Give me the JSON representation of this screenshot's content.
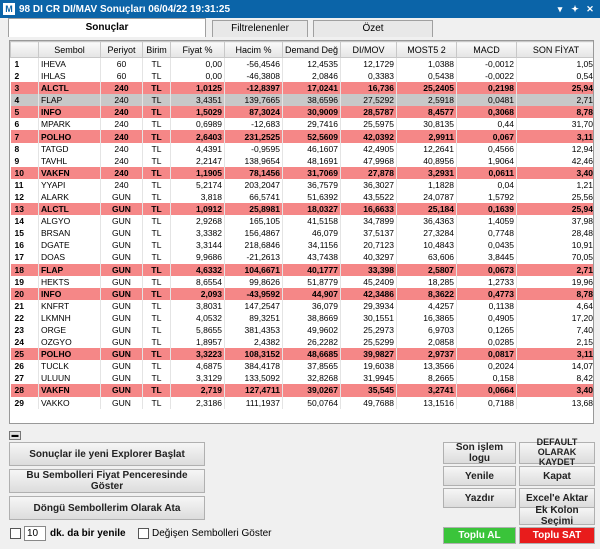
{
  "window": {
    "title": "98 DI CR DI/MAV Sonuçları  06/04/22 19:31:25",
    "icon_text": "M"
  },
  "tabs": [
    {
      "label": "Sonuçlar"
    },
    {
      "label": "Filtrelenenler"
    },
    {
      "label": "Özet"
    }
  ],
  "columns": [
    "",
    "Sembol",
    "Periyot",
    "Birim",
    "Fiyat %",
    "Hacim %",
    "Demand Değ",
    "DI/MOV",
    "MOST5 2",
    "MACD",
    "SON FİYAT"
  ],
  "rows": [
    {
      "i": "1",
      "sym": "IHEVA",
      "per": "60",
      "bir": "TL",
      "fy": "0,00",
      "hc": "-56,4546",
      "dd": "12,4535",
      "dm": "12,1729",
      "m5": "1,0388",
      "macd": "-0,0012",
      "sf": "1,05",
      "st": ""
    },
    {
      "i": "2",
      "sym": "IHLAS",
      "per": "60",
      "bir": "TL",
      "fy": "0,00",
      "hc": "-46,3808",
      "dd": "2,0846",
      "dm": "0,3383",
      "m5": "0,5438",
      "macd": "-0,0022",
      "sf": "0,54",
      "st": ""
    },
    {
      "i": "3",
      "sym": "ALCTL",
      "per": "240",
      "bir": "TL",
      "fy": "1,0125",
      "hc": "-12,8397",
      "dd": "17,0241",
      "dm": "16,736",
      "m5": "25,2405",
      "macd": "0,2198",
      "sf": "25,94",
      "st": "r"
    },
    {
      "i": "4",
      "sym": "FLAP",
      "per": "240",
      "bir": "TL",
      "fy": "3,4351",
      "hc": "139,7665",
      "dd": "38,6596",
      "dm": "27,5292",
      "m5": "2,5918",
      "macd": "0,0481",
      "sf": "2,71",
      "st": "s"
    },
    {
      "i": "5",
      "sym": "INFO",
      "per": "240",
      "bir": "TL",
      "fy": "1,5029",
      "hc": "87,3024",
      "dd": "30,9009",
      "dm": "28,5787",
      "m5": "8,4577",
      "macd": "0,3068",
      "sf": "8,78",
      "st": "r"
    },
    {
      "i": "6",
      "sym": "MPARK",
      "per": "240",
      "bir": "TL",
      "fy": "0,6989",
      "hc": "-12,683",
      "dd": "29,7416",
      "dm": "25,5975",
      "m5": "30,8135",
      "macd": "0,44",
      "sf": "31,70",
      "st": ""
    },
    {
      "i": "7",
      "sym": "POLHO",
      "per": "240",
      "bir": "TL",
      "fy": "2,6403",
      "hc": "231,2525",
      "dd": "52,5609",
      "dm": "42,0392",
      "m5": "2,9911",
      "macd": "0,067",
      "sf": "3,11",
      "st": "r"
    },
    {
      "i": "8",
      "sym": "TATGD",
      "per": "240",
      "bir": "TL",
      "fy": "4,4391",
      "hc": "-0,9595",
      "dd": "46,1607",
      "dm": "42,4905",
      "m5": "12,2641",
      "macd": "0,4566",
      "sf": "12,94",
      "st": ""
    },
    {
      "i": "9",
      "sym": "TAVHL",
      "per": "240",
      "bir": "TL",
      "fy": "2,2147",
      "hc": "138,9654",
      "dd": "48,1691",
      "dm": "47,9968",
      "m5": "40,8956",
      "macd": "1,9064",
      "sf": "42,46",
      "st": ""
    },
    {
      "i": "10",
      "sym": "VAKFN",
      "per": "240",
      "bir": "TL",
      "fy": "1,1905",
      "hc": "78,1456",
      "dd": "31,7069",
      "dm": "27,878",
      "m5": "3,2931",
      "macd": "0,0611",
      "sf": "3,40",
      "st": "r"
    },
    {
      "i": "11",
      "sym": "YYAPI",
      "per": "240",
      "bir": "TL",
      "fy": "5,2174",
      "hc": "203,2047",
      "dd": "36,7579",
      "dm": "36,3027",
      "m5": "1,1828",
      "macd": "0,04",
      "sf": "1,21",
      "st": ""
    },
    {
      "i": "12",
      "sym": "ALARK",
      "per": "GUN",
      "bir": "TL",
      "fy": "3,818",
      "hc": "66,5741",
      "dd": "51,6392",
      "dm": "43,5522",
      "m5": "24,0787",
      "macd": "1,5792",
      "sf": "25,56",
      "st": ""
    },
    {
      "i": "13",
      "sym": "ALCTL",
      "per": "GUN",
      "bir": "TL",
      "fy": "1,0912",
      "hc": "25,8981",
      "dd": "18,0327",
      "dm": "16,6633",
      "m5": "25,184",
      "macd": "0,1639",
      "sf": "25,94",
      "st": "r"
    },
    {
      "i": "14",
      "sym": "ALGYO",
      "per": "GUN",
      "bir": "TL",
      "fy": "2,9268",
      "hc": "165,105",
      "dd": "41,5158",
      "dm": "34,7899",
      "m5": "36,4363",
      "macd": "1,4059",
      "sf": "37,98",
      "st": ""
    },
    {
      "i": "15",
      "sym": "BRSAN",
      "per": "GUN",
      "bir": "TL",
      "fy": "3,3382",
      "hc": "156,4867",
      "dd": "46,079",
      "dm": "37,5137",
      "m5": "27,3284",
      "macd": "0,7748",
      "sf": "28,48",
      "st": ""
    },
    {
      "i": "16",
      "sym": "DGATE",
      "per": "GUN",
      "bir": "TL",
      "fy": "3,3144",
      "hc": "218,6846",
      "dd": "34,1156",
      "dm": "20,7123",
      "m5": "10,4843",
      "macd": "0,0435",
      "sf": "10,91",
      "st": ""
    },
    {
      "i": "17",
      "sym": "DOAS",
      "per": "GUN",
      "bir": "TL",
      "fy": "9,9686",
      "hc": "-21,2613",
      "dd": "43,7438",
      "dm": "40,3297",
      "m5": "63,606",
      "macd": "3,8445",
      "sf": "70,05",
      "st": ""
    },
    {
      "i": "18",
      "sym": "FLAP",
      "per": "GUN",
      "bir": "TL",
      "fy": "4,6332",
      "hc": "104,6671",
      "dd": "40,1777",
      "dm": "33,398",
      "m5": "2,5807",
      "macd": "0,0673",
      "sf": "2,71",
      "st": "r"
    },
    {
      "i": "19",
      "sym": "HEKTS",
      "per": "GUN",
      "bir": "TL",
      "fy": "8,6554",
      "hc": "99,8626",
      "dd": "51,8779",
      "dm": "45,2409",
      "m5": "18,285",
      "macd": "1,2733",
      "sf": "19,96",
      "st": ""
    },
    {
      "i": "20",
      "sym": "INFO",
      "per": "GUN",
      "bir": "TL",
      "fy": "2,093",
      "hc": "-43,9592",
      "dd": "44,907",
      "dm": "42,3486",
      "m5": "8,3622",
      "macd": "0,4773",
      "sf": "8,78",
      "st": "r"
    },
    {
      "i": "21",
      "sym": "KNFRT",
      "per": "GUN",
      "bir": "TL",
      "fy": "3,8031",
      "hc": "147,2547",
      "dd": "36,079",
      "dm": "29,3934",
      "m5": "4,4257",
      "macd": "0,1138",
      "sf": "4,64",
      "st": ""
    },
    {
      "i": "22",
      "sym": "LKMNH",
      "per": "GUN",
      "bir": "TL",
      "fy": "4,0532",
      "hc": "89,3251",
      "dd": "38,8669",
      "dm": "30,1551",
      "m5": "16,3865",
      "macd": "0,4905",
      "sf": "17,20",
      "st": ""
    },
    {
      "i": "23",
      "sym": "ORGE",
      "per": "GUN",
      "bir": "TL",
      "fy": "5,8655",
      "hc": "381,4353",
      "dd": "49,9602",
      "dm": "25,2973",
      "m5": "6,9703",
      "macd": "0,1265",
      "sf": "7,40",
      "st": ""
    },
    {
      "i": "24",
      "sym": "OZGYO",
      "per": "GUN",
      "bir": "TL",
      "fy": "1,8957",
      "hc": "2,4382",
      "dd": "26,2282",
      "dm": "25,5299",
      "m5": "2,0858",
      "macd": "0,0285",
      "sf": "2,15",
      "st": ""
    },
    {
      "i": "25",
      "sym": "POLHO",
      "per": "GUN",
      "bir": "TL",
      "fy": "3,3223",
      "hc": "108,3152",
      "dd": "48,6685",
      "dm": "39,9827",
      "m5": "2,9737",
      "macd": "0,0817",
      "sf": "3,11",
      "st": "r"
    },
    {
      "i": "26",
      "sym": "TUCLK",
      "per": "GUN",
      "bir": "TL",
      "fy": "4,6875",
      "hc": "384,4178",
      "dd": "37,8565",
      "dm": "19,6038",
      "m5": "13,3566",
      "macd": "0,2024",
      "sf": "14,07",
      "st": ""
    },
    {
      "i": "27",
      "sym": "ULUUN",
      "per": "GUN",
      "bir": "TL",
      "fy": "3,3129",
      "hc": "133,5092",
      "dd": "32,8268",
      "dm": "31,9945",
      "m5": "8,2665",
      "macd": "0,158",
      "sf": "8,42",
      "st": ""
    },
    {
      "i": "28",
      "sym": "VAKFN",
      "per": "GUN",
      "bir": "TL",
      "fy": "2,719",
      "hc": "127,4711",
      "dd": "39,0267",
      "dm": "35,545",
      "m5": "3,2741",
      "macd": "0,0664",
      "sf": "3,40",
      "st": "r"
    },
    {
      "i": "29",
      "sym": "VAKKO",
      "per": "GUN",
      "bir": "TL",
      "fy": "2,3186",
      "hc": "111,1937",
      "dd": "50,0764",
      "dm": "49,7688",
      "m5": "13,1516",
      "macd": "0,7188",
      "sf": "13,68",
      "st": ""
    }
  ],
  "buttons": {
    "explorer": "Sonuçlar ile yeni Explorer Başlat",
    "price_window": "Bu Sembolleri Fiyat Penceresinde Göster",
    "loop": "Döngü Sembollerim Olarak Ata",
    "last_log": "Son işlem logu",
    "default_save": "DEFAULT OLARAK KAYDET",
    "refresh": "Yenile",
    "close": "Kapat",
    "print": "Yazdır",
    "excel": "Excel'e Aktar",
    "add_col": "Ek Kolon Seçimi",
    "bulk_buy": "Toplu AL",
    "bulk_sell": "Toplu SAT"
  },
  "refresh": {
    "value": "10",
    "label": "dk. da bir yenile"
  },
  "changed_label": "Değişen Sembolleri Göster"
}
